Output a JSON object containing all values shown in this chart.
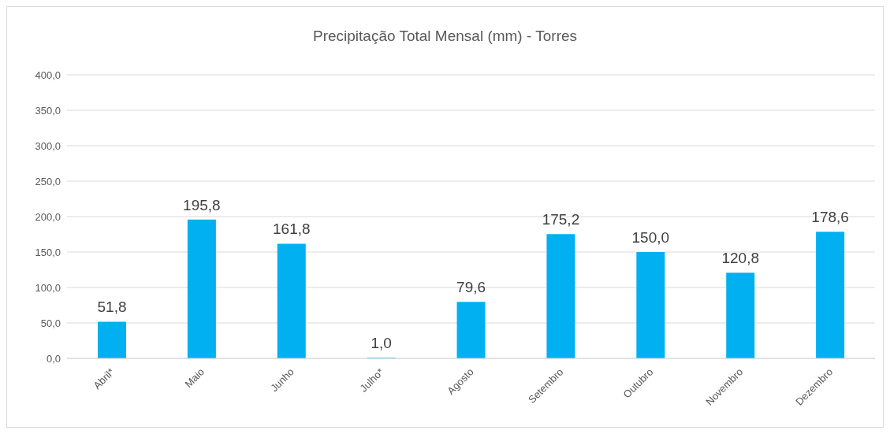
{
  "chart_data": {
    "type": "bar",
    "title": "Precipitação Total Mensal (mm) - Torres",
    "categories": [
      "Abril*",
      "Maio",
      "Junho",
      "Julho*",
      "Agosto",
      "Setembro",
      "Outubro",
      "Novembro",
      "Dezembro"
    ],
    "values": [
      51.8,
      195.8,
      161.8,
      1.0,
      79.6,
      175.2,
      150.0,
      120.8,
      178.6
    ],
    "value_labels": [
      "51,8",
      "195,8",
      "161,8",
      "1,0",
      "79,6",
      "175,2",
      "150,0",
      "120,8",
      "178,6"
    ],
    "color": "#00b0f0",
    "ylim": [
      0,
      400
    ],
    "yticks": [
      {
        "value": 0,
        "label": "0,0"
      },
      {
        "value": 50,
        "label": "50,0"
      },
      {
        "value": 100,
        "label": "100,0"
      },
      {
        "value": 150,
        "label": "150,0"
      },
      {
        "value": 200,
        "label": "200,0"
      },
      {
        "value": 250,
        "label": "250,0"
      },
      {
        "value": 300,
        "label": "300,0"
      },
      {
        "value": 350,
        "label": "350,0"
      },
      {
        "value": 400,
        "label": "400,0"
      }
    ],
    "grid": "y"
  }
}
